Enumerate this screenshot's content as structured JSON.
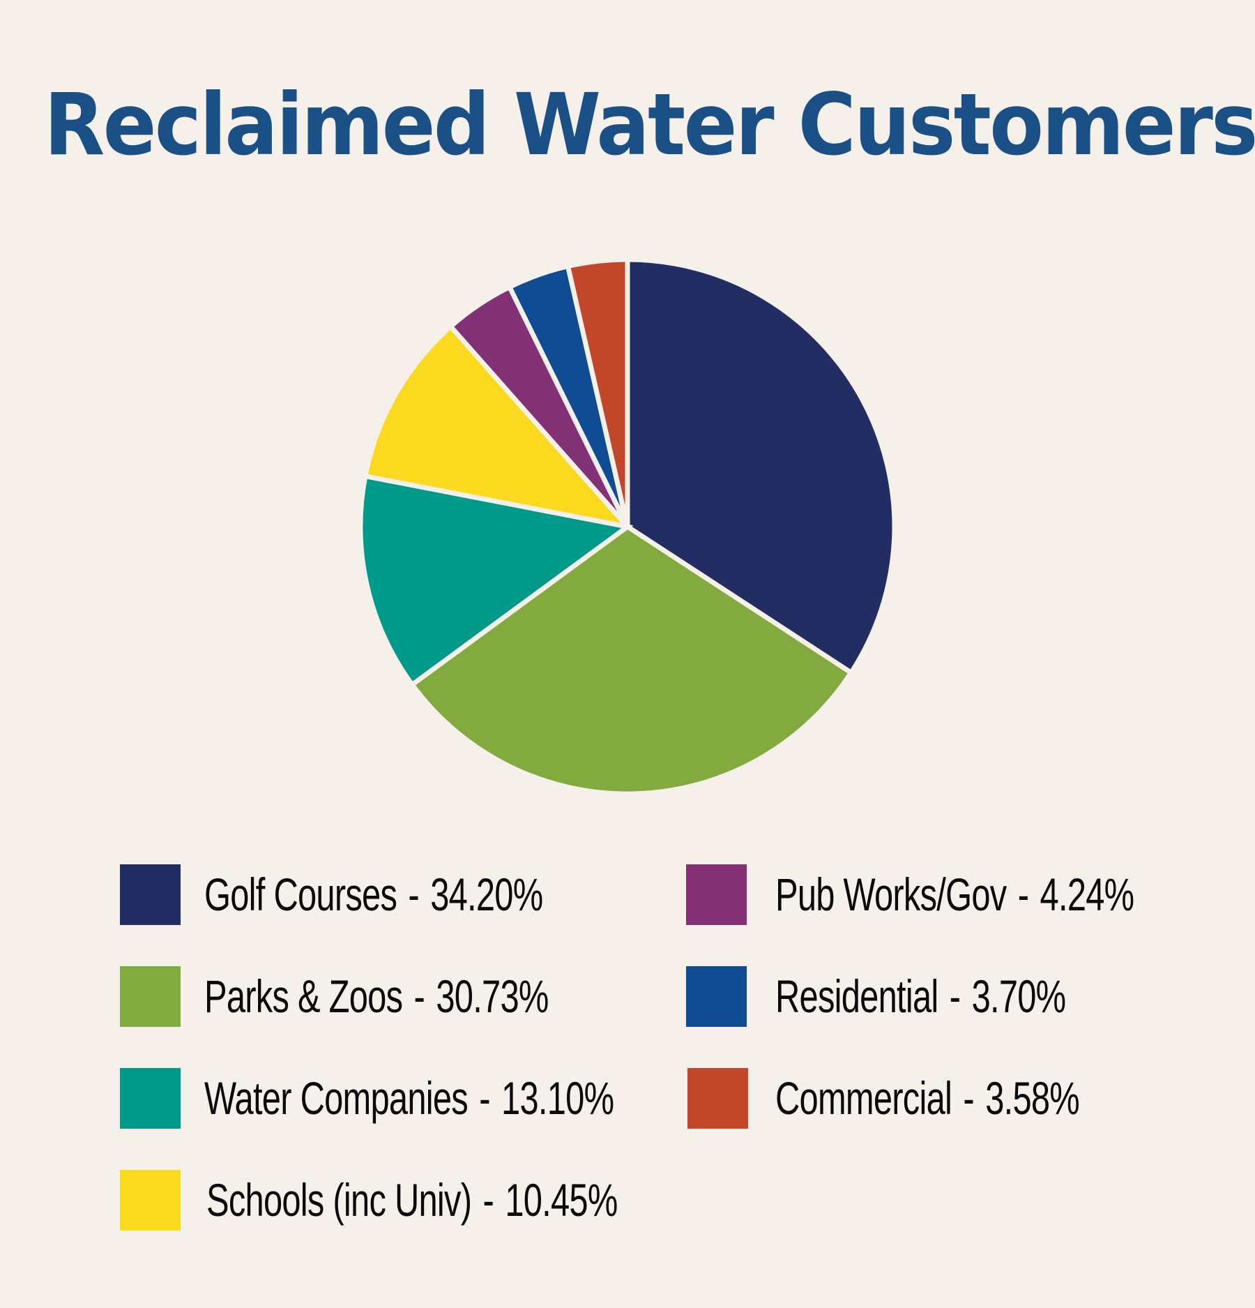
{
  "title": "Reclaimed Water Customers",
  "background_color": "#f5f0ea",
  "title_color": "#1b5087",
  "legend": {
    "separator": "-",
    "items": [
      {
        "label": "Golf Courses",
        "value": "34.20%",
        "color": "#222d63"
      },
      {
        "label": "Parks & Zoos",
        "value": "30.73%",
        "color": "#82aa3f"
      },
      {
        "label": "Water Companies",
        "value": "13.10%",
        "color": "#009a8a"
      },
      {
        "label": "Schools (inc Univ)",
        "value": "10.45%",
        "color": "#fbd91e"
      },
      {
        "label": "Pub Works/Gov",
        "value": "4.24%",
        "color": "#823274"
      },
      {
        "label": "Residential",
        "value": "3.70%",
        "color": "#0f4c93"
      },
      {
        "label": "Commercial",
        "value": "3.58%",
        "color": "#c24629"
      }
    ]
  },
  "chart_data": {
    "type": "pie",
    "title": "Reclaimed Water Customers",
    "categories": [
      "Golf Courses",
      "Parks & Zoos",
      "Water Companies",
      "Schools (inc Univ)",
      "Pub Works/Gov",
      "Residential",
      "Commercial"
    ],
    "values": [
      34.2,
      30.73,
      13.1,
      10.45,
      4.24,
      3.7,
      3.58
    ],
    "unit": "%",
    "colors": [
      "#222d63",
      "#82aa3f",
      "#009a8a",
      "#fbd91e",
      "#823274",
      "#0f4c93",
      "#c24629"
    ],
    "start_angle": "12 o'clock",
    "direction": "clockwise",
    "legend_position": "bottom",
    "data_labels": false
  }
}
